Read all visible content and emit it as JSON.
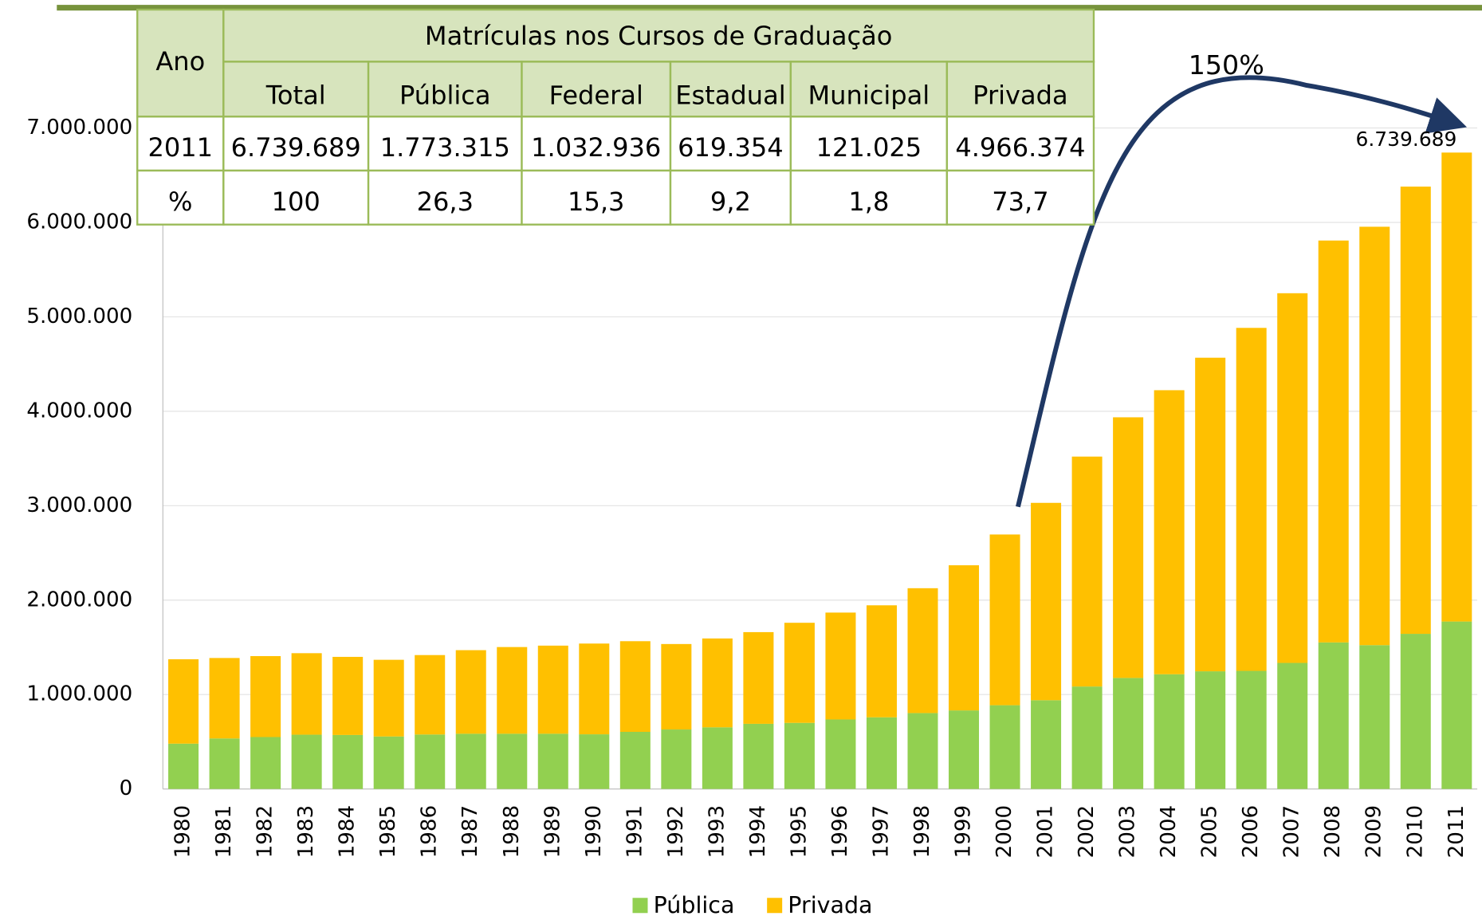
{
  "chart_data": {
    "type": "stacked_bar",
    "categories": [
      "1980",
      "1981",
      "1982",
      "1983",
      "1984",
      "1985",
      "1986",
      "1987",
      "1988",
      "1989",
      "1990",
      "1991",
      "1992",
      "1993",
      "1994",
      "1995",
      "1996",
      "1997",
      "1998",
      "1999",
      "2000",
      "2001",
      "2002",
      "2003",
      "2004",
      "2005",
      "2006",
      "2007",
      "2008",
      "2009",
      "2010",
      "2011"
    ],
    "series": [
      {
        "name": "Pública",
        "color": "#92d050",
        "values": [
          480000,
          535000,
          550000,
          575000,
          572000,
          556000,
          577000,
          585000,
          585000,
          585000,
          579000,
          605000,
          630000,
          653000,
          690000,
          700000,
          736000,
          759000,
          804000,
          832000,
          887000,
          940000,
          1085000,
          1176000,
          1215000,
          1246000,
          1251000,
          1335000,
          1552000,
          1523000,
          1643000,
          1773315
        ]
      },
      {
        "name": "Privada",
        "color": "#ffc000",
        "values": [
          894000,
          852000,
          857000,
          863000,
          827000,
          812000,
          841000,
          885000,
          918000,
          933000,
          961000,
          960000,
          905000,
          941000,
          971000,
          1060000,
          1132000,
          1186000,
          1322000,
          1537000,
          1808000,
          2090000,
          2435000,
          2760000,
          3008000,
          3321000,
          3632000,
          3915000,
          4256000,
          4431000,
          4736000,
          4966374
        ]
      }
    ],
    "ylim": [
      0,
      7000000
    ],
    "yticks": [
      0,
      {
        "value": 1000000,
        "label": "1.000.000"
      },
      {
        "value": 2000000,
        "label": "2.000.000"
      },
      {
        "value": 3000000,
        "label": "3.000.000"
      },
      {
        "value": 4000000,
        "label": "4.000.000"
      },
      {
        "value": 5000000,
        "label": "5.000.000"
      },
      {
        "value": 6000000,
        "label": "6.000.000"
      },
      {
        "value": 7000000,
        "label": "7.000.000"
      }
    ],
    "grid": true,
    "legend": "bottom",
    "annotations": [
      "150%",
      "6.739.689"
    ]
  },
  "table": {
    "header": [
      "Ano",
      "Matrículas nos Cursos de Graduação"
    ],
    "columns": [
      "Total",
      "Pública",
      "Federal",
      "Estadual",
      "Municipal",
      "Privada"
    ],
    "rows": [
      [
        "2011",
        "6.739.689",
        "1.773.315",
        "1.032.936",
        "619.354",
        "121.025",
        "4.966.374"
      ],
      [
        "%",
        "100",
        "26,3",
        "15,3",
        "9,2",
        "1,8",
        "73,7"
      ]
    ]
  }
}
